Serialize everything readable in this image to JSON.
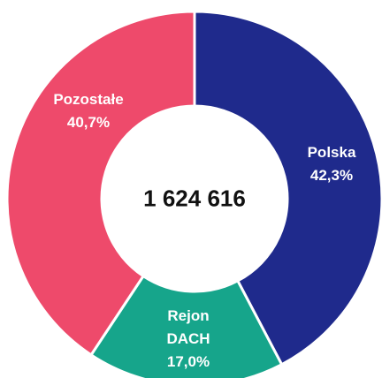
{
  "chart_data": {
    "type": "donut",
    "categories": [
      "Polska",
      "Rejon DACH",
      "Pozostałe"
    ],
    "values": [
      42.3,
      17.0,
      40.7
    ],
    "value_labels": [
      "42,3%",
      "17,0%",
      "40,7%"
    ],
    "colors": [
      "#1f2a8c",
      "#16a58b",
      "#ee4a6b"
    ],
    "center_text": "1 624 616"
  }
}
